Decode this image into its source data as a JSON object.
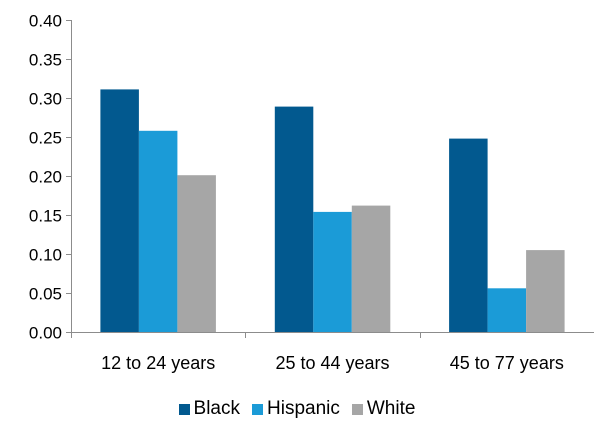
{
  "chart_data": {
    "type": "bar",
    "categories": [
      "12 to 24 years",
      "25 to 44 years",
      "45 to 77 years"
    ],
    "series": [
      {
        "name": "Black",
        "color": "#02598f",
        "values": [
          0.311,
          0.289,
          0.248
        ]
      },
      {
        "name": "Hispanic",
        "color": "#1b9bd7",
        "values": [
          0.258,
          0.154,
          0.056
        ]
      },
      {
        "name": "White",
        "color": "#a6a6a6",
        "values": [
          0.201,
          0.162,
          0.105
        ]
      }
    ],
    "ylim": [
      0,
      0.4
    ],
    "yticks": [
      "0.00",
      "0.05",
      "0.10",
      "0.15",
      "0.20",
      "0.25",
      "0.30",
      "0.35",
      "0.40"
    ],
    "title": "",
    "xlabel": "",
    "ylabel": "",
    "grid": false,
    "legend_position": "bottom"
  }
}
